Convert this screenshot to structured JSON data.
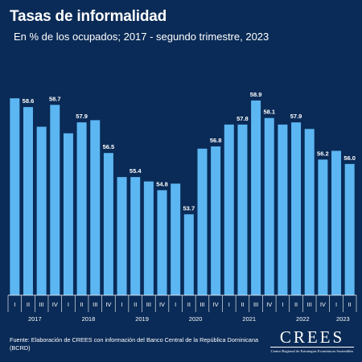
{
  "header": {
    "title": "Tasas de informalidad",
    "subtitle": "En % de los ocupados; 2017 - segundo trimestre, 2023"
  },
  "footer": {
    "source": "Fuente: Elaboración de CREES con información del Banco Central de la República Dominicana (BCRD)"
  },
  "brand": {
    "name": "CREES",
    "tagline": "Centro Regional de Estrategias Económicas Sostenibles"
  },
  "colors": {
    "background": "#0a2b57",
    "bar": "#5cb6f2",
    "text": "#ffffff",
    "axis": "#ffffff"
  },
  "chart_data": {
    "type": "bar",
    "title": "Tasas de informalidad",
    "subtitle": "En % de los ocupados; 2017 - segundo trimestre, 2023",
    "xlabel": "",
    "ylabel": "",
    "ylim": [
      50,
      59.5
    ],
    "grid": false,
    "legend": "none",
    "categories": [
      "I",
      "II",
      "III",
      "IV",
      "I",
      "II",
      "III",
      "IV",
      "I",
      "II",
      "III",
      "IV",
      "I",
      "II",
      "III",
      "IV",
      "I",
      "II",
      "III",
      "IV",
      "I",
      "II",
      "III",
      "IV",
      "I",
      "II"
    ],
    "years": [
      "2017",
      "2018",
      "2019",
      "2020",
      "2021",
      "2022",
      "2023"
    ],
    "year_quarter_counts": [
      4,
      4,
      4,
      4,
      4,
      4,
      2
    ],
    "values": [
      59.0,
      58.6,
      57.7,
      58.7,
      57.4,
      57.9,
      58.0,
      56.5,
      55.4,
      55.4,
      55.2,
      54.8,
      55.1,
      53.7,
      56.7,
      56.8,
      57.8,
      57.8,
      58.9,
      58.1,
      57.8,
      57.9,
      57.6,
      56.2,
      56.6,
      56.0
    ],
    "labels": [
      "",
      "58.6",
      "",
      "58.7",
      "",
      "57.9",
      "",
      "56.5",
      "",
      "55.4",
      "",
      "54.8",
      "",
      "53.7",
      "",
      "56.8",
      "",
      "57.8",
      "58.9",
      "58.1",
      "",
      "57.9",
      "",
      "56.2",
      "",
      "56.0"
    ]
  }
}
